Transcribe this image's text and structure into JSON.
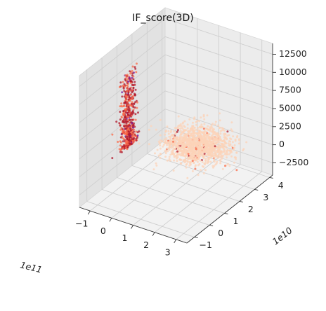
{
  "chart_data": {
    "type": "scatter",
    "title": "IF_score(3D)",
    "projection": "3d",
    "x_axis": {
      "offset_label": "1e11",
      "ticks": [
        -1,
        0,
        1,
        2,
        3
      ],
      "tick_labels": [
        "−1",
        "0",
        "1",
        "2",
        "3"
      ],
      "range": [
        -1.5,
        3.5
      ]
    },
    "y_axis": {
      "offset_label": "1e10",
      "ticks": [
        -1,
        0,
        1,
        2,
        3,
        4
      ],
      "tick_labels": [
        "−1",
        "0",
        "1",
        "2",
        "3",
        "4"
      ],
      "range": [
        -1.5,
        4.2
      ]
    },
    "z_axis": {
      "ticks": [
        -2500,
        0,
        2500,
        5000,
        7500,
        10000,
        12500
      ],
      "tick_labels": [
        "−2500",
        "0",
        "2500",
        "5000",
        "7500",
        "10000",
        "12500"
      ],
      "range": [
        -4200,
        14000
      ]
    },
    "grid": true,
    "colormap": "reds (light peach to dark red)",
    "colors": {
      "low": "#fcd3b8",
      "mid": "#fb6b4a",
      "high": "#b2182b",
      "extreme": "#7a1fa0"
    },
    "clusters": [
      {
        "description": "tall narrow vertical spike",
        "x_center_1e11": -1.25,
        "x_spread_1e11": 0.05,
        "y_center_1e10": 1.4,
        "y_spread_1e10": 0.25,
        "z_range": [
          -200,
          10000
        ],
        "approx_points": 520
      },
      {
        "description": "broad flat cloud",
        "x_center_1e11": 1.2,
        "x_spread_1e11": 0.65,
        "y_center_1e10": 2.5,
        "y_spread_1e10": 0.6,
        "z_range": [
          -300,
          2600
        ],
        "approx_points": 1400
      }
    ]
  }
}
